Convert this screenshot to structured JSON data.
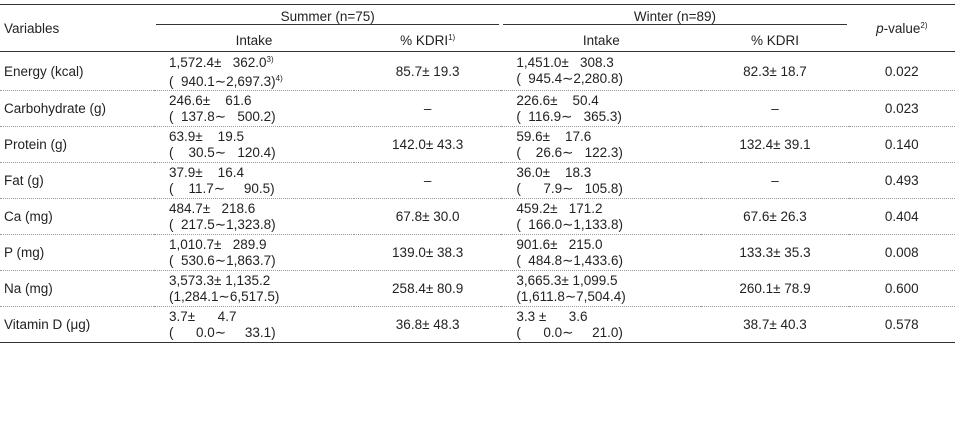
{
  "header": {
    "variables": "Variables",
    "summer_group": "Summer (n=75)",
    "winter_group": "Winter (n=89)",
    "pvalue_label": "p",
    "pvalue_rest": "-value",
    "pvalue_sup": "2)",
    "intake": "Intake",
    "kdri_summer": "% KDRI",
    "kdri_summer_sup": "1)",
    "kdri_winter": "% KDRI"
  },
  "rows": [
    {
      "variable": "Energy (kcal)",
      "summer_l1": "1,572.4±   362.0",
      "summer_l1_sup": "3)",
      "summer_l2": "(  940.1∼2,697.3)",
      "summer_l2_sup": "4)",
      "summer_kdri": "85.7± 19.3",
      "winter_l1": "1,451.0±   308.3",
      "winter_l2": "(  945.4∼2,280.8)",
      "winter_kdri": "82.3± 18.7",
      "p": "0.022"
    },
    {
      "variable": "Carbohydrate (g)",
      "summer_l1": "246.6±    61.6",
      "summer_l2": "(  137.8∼   500.2)",
      "summer_kdri": "–",
      "winter_l1": "226.6±    50.4",
      "winter_l2": "(  116.9∼   365.3)",
      "winter_kdri": "–",
      "p": "0.023"
    },
    {
      "variable": "Protein (g)",
      "summer_l1": "63.9±    19.5",
      "summer_l2": "(    30.5∼   120.4)",
      "summer_kdri": "142.0± 43.3",
      "winter_l1": "59.6±    17.6",
      "winter_l2": "(    26.6∼   122.3)",
      "winter_kdri": "132.4± 39.1",
      "p": "0.140"
    },
    {
      "variable": "Fat (g)",
      "summer_l1": "37.9±    16.4",
      "summer_l2": "(    11.7∼     90.5)",
      "summer_kdri": "–",
      "winter_l1": "36.0±    18.3",
      "winter_l2": "(      7.9∼   105.8)",
      "winter_kdri": "–",
      "p": "0.493"
    },
    {
      "variable": "Ca (mg)",
      "summer_l1": "484.7±   218.6",
      "summer_l2": "(  217.5∼1,323.8)",
      "summer_kdri": "67.8± 30.0",
      "winter_l1": "459.2±   171.2",
      "winter_l2": "(  166.0∼1,133.8)",
      "winter_kdri": "67.6± 26.3",
      "p": "0.404"
    },
    {
      "variable": "P (mg)",
      "summer_l1": "1,010.7±   289.9",
      "summer_l2": "(  530.6∼1,863.7)",
      "summer_kdri": "139.0± 38.3",
      "winter_l1": "901.6±   215.0",
      "winter_l2": "(  484.8∼1,433.6)",
      "winter_kdri": "133.3± 35.3",
      "p": "0.008"
    },
    {
      "variable": "Na (mg)",
      "summer_l1": "3,573.3± 1,135.2",
      "summer_l2": "(1,284.1∼6,517.5)",
      "summer_kdri": "258.4± 80.9",
      "winter_l1": "3,665.3± 1,099.5",
      "winter_l2": "(1,611.8∼7,504.4)",
      "winter_kdri": "260.1± 78.9",
      "p": "0.600"
    },
    {
      "variable": "Vitamin D (μg)",
      "summer_l1": "3.7±      4.7",
      "summer_l2": "(      0.0∼     33.1)",
      "summer_kdri": "36.8± 48.3",
      "winter_l1": "3.3 ±      3.6",
      "winter_l2": "(      0.0∼     21.0)",
      "winter_kdri": "38.7± 40.3",
      "p": "0.578"
    }
  ]
}
